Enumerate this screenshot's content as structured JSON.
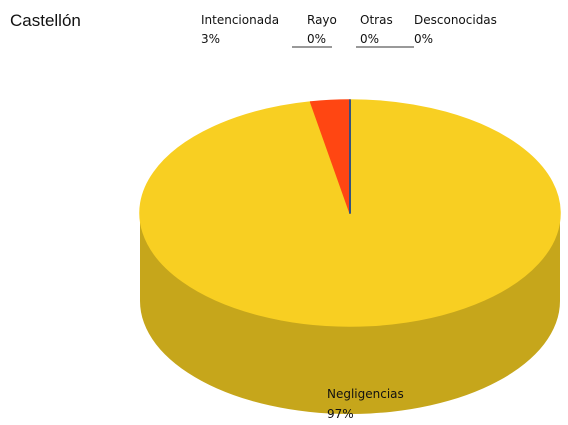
{
  "chart_data": {
    "type": "pie3d",
    "title": "Castellón",
    "categories": [
      "Negligencias",
      "Intencionada",
      "Rayo",
      "Otras",
      "Desconocidas"
    ],
    "values": [
      97,
      3,
      0,
      0,
      0
    ],
    "value_labels": [
      "97%",
      "3%",
      "0%",
      "0%",
      "0%"
    ],
    "colors": [
      "#f8cf22",
      "#ff4612",
      "#2e2e8a",
      "#6a1f6a",
      "#1d5c8a"
    ]
  }
}
